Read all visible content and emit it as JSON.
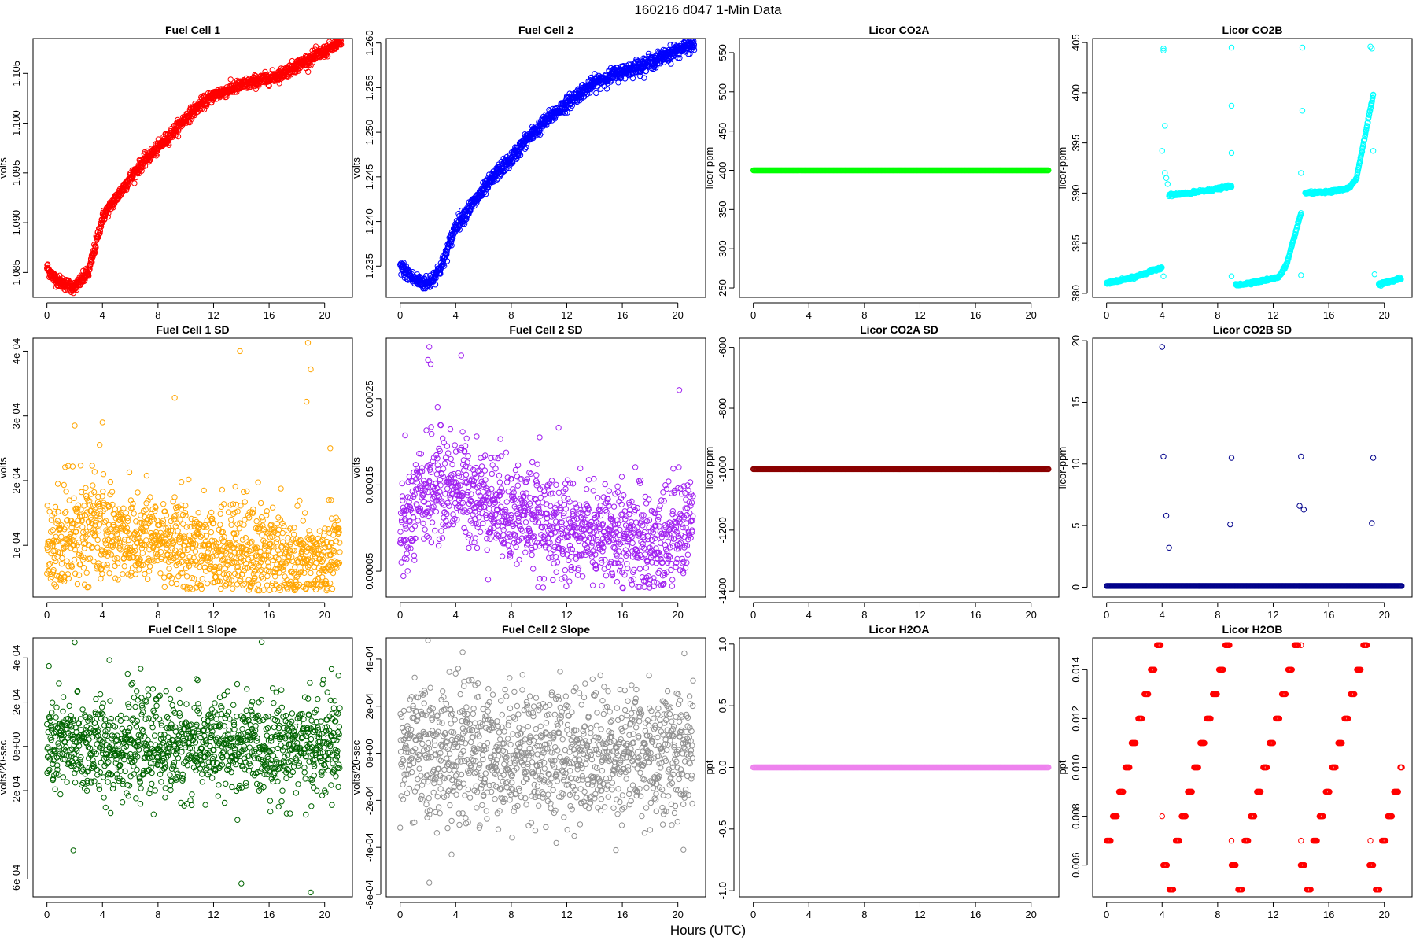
{
  "page": {
    "title": "160216    d047    1-Min Data",
    "xlabel": "Hours (UTC)"
  },
  "chart_data": [
    {
      "type": "scatter",
      "title": "Fuel Cell 1",
      "xlabel": "",
      "ylabel": "volts",
      "color": "#ff0000",
      "xlim": [
        -1,
        22
      ],
      "ylim": [
        1.0825,
        1.1085
      ],
      "xticks": [
        0,
        4,
        8,
        12,
        16,
        20
      ],
      "yticks": [
        1.085,
        1.09,
        1.095,
        1.1,
        1.105
      ],
      "ytick_labels": [
        "1.085",
        "1.090",
        "1.095",
        "1.100",
        "1.105"
      ],
      "gen": {
        "kind": "curve",
        "noise": 0.0003,
        "knots": [
          [
            0,
            1.0855
          ],
          [
            0.5,
            1.0845
          ],
          [
            1,
            1.084
          ],
          [
            2,
            1.0835
          ],
          [
            3,
            1.085
          ],
          [
            4,
            1.0905
          ],
          [
            5,
            1.0925
          ],
          [
            6,
            1.0945
          ],
          [
            7,
            1.0962
          ],
          [
            8,
            1.0975
          ],
          [
            9,
            1.099
          ],
          [
            10,
            1.1005
          ],
          [
            11,
            1.1018
          ],
          [
            12,
            1.1028
          ],
          [
            13,
            1.1033
          ],
          [
            14,
            1.1038
          ],
          [
            15,
            1.1042
          ],
          [
            16,
            1.1045
          ],
          [
            17,
            1.105
          ],
          [
            18,
            1.1058
          ],
          [
            19,
            1.1065
          ],
          [
            20,
            1.1072
          ],
          [
            21,
            1.108
          ]
        ]
      }
    },
    {
      "type": "scatter",
      "title": "Fuel Cell 2",
      "xlabel": "",
      "ylabel": "volts",
      "color": "#0000ff",
      "xlim": [
        -1,
        22
      ],
      "ylim": [
        1.2315,
        1.2605
      ],
      "xticks": [
        0,
        4,
        8,
        12,
        16,
        20
      ],
      "yticks": [
        1.235,
        1.24,
        1.245,
        1.25,
        1.255,
        1.26
      ],
      "ytick_labels": [
        "1.235",
        "1.240",
        "1.245",
        "1.250",
        "1.255",
        "1.260"
      ],
      "gen": {
        "kind": "curve",
        "noise": 0.0004,
        "knots": [
          [
            0,
            1.235
          ],
          [
            1,
            1.2335
          ],
          [
            2,
            1.233
          ],
          [
            3,
            1.235
          ],
          [
            4,
            1.2395
          ],
          [
            5,
            1.2415
          ],
          [
            6,
            1.2435
          ],
          [
            7,
            1.2455
          ],
          [
            8,
            1.247
          ],
          [
            9,
            1.249
          ],
          [
            10,
            1.2505
          ],
          [
            11,
            1.252
          ],
          [
            12,
            1.2532
          ],
          [
            13,
            1.2545
          ],
          [
            14,
            1.2555
          ],
          [
            15,
            1.2562
          ],
          [
            16,
            1.2568
          ],
          [
            17,
            1.2573
          ],
          [
            18,
            1.2578
          ],
          [
            19,
            1.2585
          ],
          [
            20,
            1.2592
          ],
          [
            21,
            1.2598
          ]
        ]
      }
    },
    {
      "type": "scatter",
      "title": "Licor CO2A",
      "xlabel": "",
      "ylabel": "licor-ppm",
      "color": "#00ff00",
      "xlim": [
        -1,
        22
      ],
      "ylim": [
        238,
        568
      ],
      "xticks": [
        0,
        4,
        8,
        12,
        16,
        20
      ],
      "yticks": [
        250,
        300,
        350,
        400,
        450,
        500,
        550
      ],
      "ytick_labels": [
        "250",
        "300",
        "350",
        "400",
        "450",
        "500",
        "550"
      ],
      "gen": {
        "kind": "flat",
        "value": 400
      }
    },
    {
      "type": "scatter",
      "title": "Licor CO2B",
      "xlabel": "",
      "ylabel": "licor-ppm",
      "color": "#00ffff",
      "xlim": [
        -1,
        22
      ],
      "ylim": [
        379.6,
        405.4
      ],
      "xticks": [
        0,
        4,
        8,
        12,
        16,
        20
      ],
      "yticks": [
        380,
        385,
        390,
        395,
        400,
        405
      ],
      "ytick_labels": [
        "380",
        "385",
        "390",
        "395",
        "400",
        "405"
      ],
      "gen": {
        "kind": "segments",
        "segments": [
          {
            "x": [
              0,
              4
            ],
            "knots": [
              [
                0,
                381
              ],
              [
                2,
                381.6
              ],
              [
                4,
                382.6
              ]
            ]
          },
          {
            "x": [
              4.5,
              9
            ],
            "knots": [
              [
                4.5,
                389.8
              ],
              [
                6,
                390
              ],
              [
                7.5,
                390.3
              ],
              [
                9,
                390.7
              ]
            ]
          },
          {
            "x": [
              9.3,
              14
            ],
            "knots": [
              [
                9.3,
                380.8
              ],
              [
                11,
                381.2
              ],
              [
                12.4,
                381.6
              ],
              [
                13,
                383
              ],
              [
                14,
                388
              ]
            ]
          },
          {
            "x": [
              14.3,
              19.2
            ],
            "knots": [
              [
                14.3,
                390
              ],
              [
                16,
                390.1
              ],
              [
                17.5,
                390.5
              ],
              [
                18,
                391.5
              ],
              [
                19.2,
                399.8
              ]
            ]
          },
          {
            "x": [
              19.6,
              21.2
            ],
            "knots": [
              [
                19.6,
                380.9
              ],
              [
                21.2,
                381.5
              ]
            ]
          }
        ],
        "extra": [
          [
            4.1,
            404.4
          ],
          [
            4.1,
            404.2
          ],
          [
            4.2,
            396.7
          ],
          [
            4,
            394.2
          ],
          [
            4.2,
            392
          ],
          [
            4.3,
            391.5
          ],
          [
            4.4,
            390.9
          ],
          [
            4.1,
            381.7
          ],
          [
            9,
            404.5
          ],
          [
            9,
            398.7
          ],
          [
            9,
            394
          ],
          [
            9,
            381.7
          ],
          [
            14.1,
            404.5
          ],
          [
            14.1,
            398.2
          ],
          [
            14,
            392
          ],
          [
            14,
            381.8
          ],
          [
            19,
            404.6
          ],
          [
            19.1,
            404.4
          ],
          [
            19.2,
            394.2
          ],
          [
            19.3,
            381.9
          ]
        ]
      }
    },
    {
      "type": "scatter",
      "title": "Fuel Cell 1 SD",
      "xlabel": "",
      "ylabel": "volts",
      "color": "#ffa500",
      "xlim": [
        -1,
        22
      ],
      "ylim": [
        2e-05,
        0.00042
      ],
      "xticks": [
        0,
        4,
        8,
        12,
        16,
        20
      ],
      "yticks": [
        0.0001,
        0.0002,
        0.0003,
        0.0004
      ],
      "ytick_labels": [
        "1e-04",
        "2e-04",
        "3e-04",
        "4e-04"
      ],
      "gen": {
        "kind": "scatter",
        "sd": 3.8e-05,
        "min": 3e-05,
        "knots": [
          [
            0,
            8e-05
          ],
          [
            2,
            0.00013
          ],
          [
            4,
            0.00012
          ],
          [
            8,
            0.00011
          ],
          [
            12,
            9.5e-05
          ],
          [
            16,
            8.5e-05
          ],
          [
            19,
            7e-05
          ],
          [
            21,
            0.0001
          ]
        ]
      },
      "extra": [
        [
          13.9,
          0.0004
        ],
        [
          18.8,
          0.000413
        ],
        [
          19,
          0.000372
        ],
        [
          18.7,
          0.000322
        ],
        [
          9.2,
          0.000328
        ],
        [
          4,
          0.00029
        ],
        [
          2,
          0.000285
        ],
        [
          3.8,
          0.000255
        ],
        [
          20.4,
          0.00025
        ]
      ]
    },
    {
      "type": "scatter",
      "title": "Fuel Cell 2 SD",
      "xlabel": "",
      "ylabel": "volts",
      "color": "#a020f0",
      "xlim": [
        -1,
        22
      ],
      "ylim": [
        2e-05,
        0.00032
      ],
      "xticks": [
        0,
        4,
        8,
        12,
        16,
        20
      ],
      "yticks": [
        5e-05,
        0.00015,
        0.00025
      ],
      "ytick_labels": [
        "0.00005",
        "0.00015",
        "0.00025"
      ],
      "gen": {
        "kind": "scatter",
        "sd": 3e-05,
        "min": 3e-05,
        "knots": [
          [
            0,
            9e-05
          ],
          [
            2,
            0.000145
          ],
          [
            4,
            0.00015
          ],
          [
            8,
            0.00012
          ],
          [
            12,
            0.0001
          ],
          [
            16,
            9e-05
          ],
          [
            19,
            8e-05
          ],
          [
            21,
            0.00011
          ]
        ]
      },
      "extra": [
        [
          2.1,
          0.00031
        ],
        [
          2,
          0.000295
        ],
        [
          2.2,
          0.00029
        ],
        [
          4.4,
          0.0003
        ],
        [
          2.7,
          0.00024
        ],
        [
          20.1,
          0.00026
        ]
      ]
    },
    {
      "type": "scatter",
      "title": "Licor CO2A SD",
      "xlabel": "",
      "ylabel": "licor-ppm",
      "color": "#8b0000",
      "xlim": [
        -1,
        22
      ],
      "ylim": [
        -1420,
        -570
      ],
      "xticks": [
        0,
        4,
        8,
        12,
        16,
        20
      ],
      "yticks": [
        -1400,
        -1200,
        -1000,
        -800,
        -600
      ],
      "ytick_labels": [
        "-1400",
        "-1200",
        "-1000",
        "-800",
        "-600"
      ],
      "gen": {
        "kind": "flat",
        "value": -1000
      }
    },
    {
      "type": "scatter",
      "title": "Licor CO2B SD",
      "xlabel": "",
      "ylabel": "licor-ppm",
      "color": "#00008b",
      "xlim": [
        -1,
        22
      ],
      "ylim": [
        -0.8,
        20.2
      ],
      "xticks": [
        0,
        4,
        8,
        12,
        16,
        20
      ],
      "yticks": [
        0,
        5,
        10,
        15,
        20
      ],
      "ytick_labels": [
        "0",
        "5",
        "10",
        "15",
        "20"
      ],
      "gen": {
        "kind": "flat",
        "value": 0.1
      },
      "extra": [
        [
          4,
          19.5
        ],
        [
          4.1,
          10.6
        ],
        [
          4.3,
          5.8
        ],
        [
          4.5,
          3.2
        ],
        [
          9,
          10.5
        ],
        [
          8.9,
          5.1
        ],
        [
          14,
          10.6
        ],
        [
          13.9,
          6.6
        ],
        [
          14.2,
          6.3
        ],
        [
          19.2,
          10.5
        ],
        [
          19.1,
          5.2
        ]
      ]
    },
    {
      "type": "scatter",
      "title": "Fuel Cell 1 Slope",
      "xlabel": "",
      "ylabel": "volts/20-sec",
      "color": "#006400",
      "xlim": [
        -1,
        22
      ],
      "ylim": [
        -0.00068,
        0.00049
      ],
      "xticks": [
        0,
        4,
        8,
        12,
        16,
        20
      ],
      "yticks": [
        -0.0006,
        -0.0002,
        0.0002,
        0.0004
      ],
      "ytick_labels": [
        "-6e-04",
        "-2e-04",
        "2e-04",
        "4e-04"
      ],
      "extra_ytick_labels": [
        [
          0,
          "0e+00"
        ]
      ],
      "gen": {
        "kind": "scatter",
        "sd": 0.00011,
        "knots": [
          [
            0,
            0
          ],
          [
            21,
            0
          ]
        ]
      },
      "extra": [
        [
          2,
          0.00047
        ],
        [
          4.5,
          0.00039
        ],
        [
          14,
          -0.00062
        ],
        [
          19,
          -0.00066
        ],
        [
          1.9,
          -0.00047
        ],
        [
          20.5,
          0.00035
        ],
        [
          21,
          0.00032
        ]
      ]
    },
    {
      "type": "scatter",
      "title": "Fuel Cell 2 Slope",
      "xlabel": "",
      "ylabel": "volts/20-sec",
      "color": "#909090",
      "xlim": [
        -1,
        22
      ],
      "ylim": [
        -0.00061,
        0.00049
      ],
      "xticks": [
        0,
        4,
        8,
        12,
        16,
        20
      ],
      "yticks": [
        -0.0006,
        -0.0004,
        -0.0002,
        0,
        0.0002,
        0.0004
      ],
      "ytick_labels": [
        "-6e-04",
        "-4e-04",
        "-2e-04",
        "0e+00",
        "2e-04",
        "4e-04"
      ],
      "gen": {
        "kind": "scatter",
        "sd": 0.00014,
        "knots": [
          [
            0,
            0
          ],
          [
            21,
            0
          ]
        ]
      },
      "extra": [
        [
          2.1,
          -0.00055
        ],
        [
          2,
          0.00048
        ],
        [
          4.5,
          0.00043
        ],
        [
          3.7,
          -0.00043
        ],
        [
          20.4,
          -0.00041
        ]
      ]
    },
    {
      "type": "scatter",
      "title": "Licor H2OA",
      "xlabel": "",
      "ylabel": "ppt",
      "color": "#ee82ee",
      "xlim": [
        -1,
        22
      ],
      "ylim": [
        -1.05,
        1.05
      ],
      "xticks": [
        0,
        4,
        8,
        12,
        16,
        20
      ],
      "yticks": [
        -1.0,
        -0.5,
        0.0,
        0.5,
        1.0
      ],
      "ytick_labels": [
        "-1.0",
        "-0.5",
        "0.0",
        "0.5",
        "1.0"
      ],
      "gen": {
        "kind": "flat",
        "value": 0
      }
    },
    {
      "type": "scatter",
      "title": "Licor H2OB",
      "xlabel": "",
      "ylabel": "ppt",
      "color": "#ff0000",
      "xlim": [
        -1,
        22
      ],
      "ylim": [
        0.0047,
        0.0153
      ],
      "xticks": [
        0,
        4,
        8,
        12,
        16,
        20
      ],
      "yticks": [
        0.006,
        0.008,
        0.01,
        0.012,
        0.014
      ],
      "ytick_labels": [
        "0.006",
        "0.008",
        "0.010",
        "0.012",
        "0.014"
      ],
      "gen": {
        "kind": "steps",
        "x0": 0,
        "period": 4.95,
        "levels": [
          0.007,
          0.008,
          0.009,
          0.01,
          0.011,
          0.012,
          0.013,
          0.014,
          0.015,
          0.006,
          0.005
        ]
      },
      "extra": [
        [
          4,
          0.008
        ],
        [
          9,
          0.007
        ],
        [
          9,
          0.006
        ],
        [
          14,
          0.015
        ],
        [
          14,
          0.007
        ],
        [
          14,
          0.006
        ],
        [
          19,
          0.007
        ]
      ]
    }
  ]
}
